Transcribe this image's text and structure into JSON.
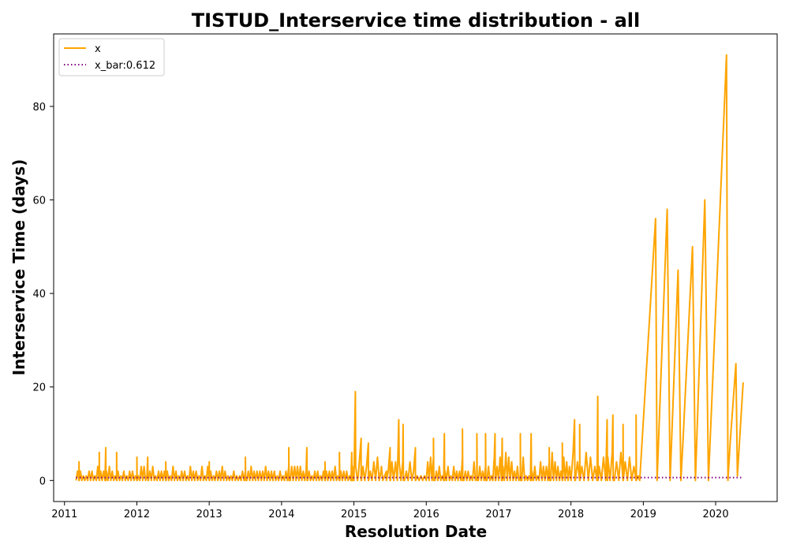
{
  "chart_data": {
    "type": "line",
    "title": "TISTUD_Interservice time distribution - all",
    "xlabel": "Resolution Date",
    "ylabel": "Interservice Time (days)",
    "x_ticks": [
      "2011",
      "2012",
      "2013",
      "2014",
      "2015",
      "2016",
      "2017",
      "2018",
      "2019",
      "2020"
    ],
    "y_ticks": [
      "0",
      "20",
      "40",
      "60",
      "80"
    ],
    "xlim": [
      2010.85,
      2020.85
    ],
    "ylim": [
      -4.5,
      95.5
    ],
    "grid": false,
    "legend_position": "upper-left",
    "colors": {
      "x": "#ffa500",
      "x_bar": "#800080"
    },
    "series": [
      {
        "name": "x",
        "style": "solid",
        "dense_segments": [
          {
            "from": 2011.16,
            "to": 2015.0,
            "low": 0,
            "high": 3,
            "step": 0.02,
            "spikes": [
              [
                2011.2,
                4
              ],
              [
                2011.48,
                6
              ],
              [
                2011.57,
                7
              ],
              [
                2011.72,
                6
              ],
              [
                2012.0,
                5
              ],
              [
                2012.15,
                5
              ],
              [
                2012.4,
                4
              ],
              [
                2013.0,
                4
              ],
              [
                2013.5,
                5
              ],
              [
                2014.1,
                7
              ],
              [
                2014.35,
                7
              ],
              [
                2014.6,
                4
              ],
              [
                2014.8,
                6
              ],
              [
                2014.97,
                6
              ]
            ]
          },
          {
            "from": 2015.0,
            "to": 2016.0,
            "low": 0,
            "high": 5,
            "step": 0.025,
            "spikes": [
              [
                2015.1,
                9
              ],
              [
                2015.2,
                8
              ],
              [
                2015.5,
                7
              ],
              [
                2015.68,
                12
              ],
              [
                2015.85,
                7
              ]
            ]
          },
          {
            "from": 2016.0,
            "to": 2017.0,
            "low": 0,
            "high": 6,
            "step": 0.02,
            "spikes": [
              [
                2016.1,
                9
              ],
              [
                2016.25,
                10
              ],
              [
                2016.5,
                11
              ],
              [
                2016.7,
                10
              ],
              [
                2016.82,
                10
              ],
              [
                2016.95,
                10
              ]
            ]
          },
          {
            "from": 2017.0,
            "to": 2018.0,
            "low": 0,
            "high": 6,
            "step": 0.02,
            "spikes": [
              [
                2017.05,
                9
              ],
              [
                2017.3,
                10
              ],
              [
                2017.45,
                10
              ],
              [
                2017.7,
                7
              ],
              [
                2017.88,
                8
              ]
            ]
          },
          {
            "from": 2018.0,
            "to": 2018.95,
            "low": 0,
            "high": 6,
            "step": 0.03,
            "spikes": [
              [
                2018.05,
                13
              ],
              [
                2018.12,
                12
              ],
              [
                2018.37,
                18
              ],
              [
                2018.5,
                13
              ],
              [
                2018.58,
                14
              ],
              [
                2018.72,
                12
              ],
              [
                2018.9,
                14
              ]
            ]
          }
        ],
        "x": [
          2014.98,
          2015.02,
          2015.06,
          2015.3,
          2015.38,
          2015.45,
          2015.55,
          2015.62,
          2018.95,
          2019.17,
          2019.19,
          2019.33,
          2019.37,
          2019.48,
          2019.52,
          2019.55,
          2019.68,
          2019.72,
          2019.85,
          2019.9,
          2020.15,
          2020.17,
          2020.2,
          2020.28,
          2020.3,
          2020.38
        ],
        "y": [
          0,
          19,
          1,
          0,
          3,
          2,
          0,
          13,
          0,
          56,
          0,
          58,
          0,
          45,
          0,
          9,
          50,
          0,
          60,
          0,
          91,
          0,
          8,
          25,
          1,
          21
        ]
      },
      {
        "name": "x_bar:0.612",
        "style": "dotted",
        "x": [
          2011.16,
          2020.38
        ],
        "y": [
          0.612,
          0.612
        ]
      }
    ]
  }
}
